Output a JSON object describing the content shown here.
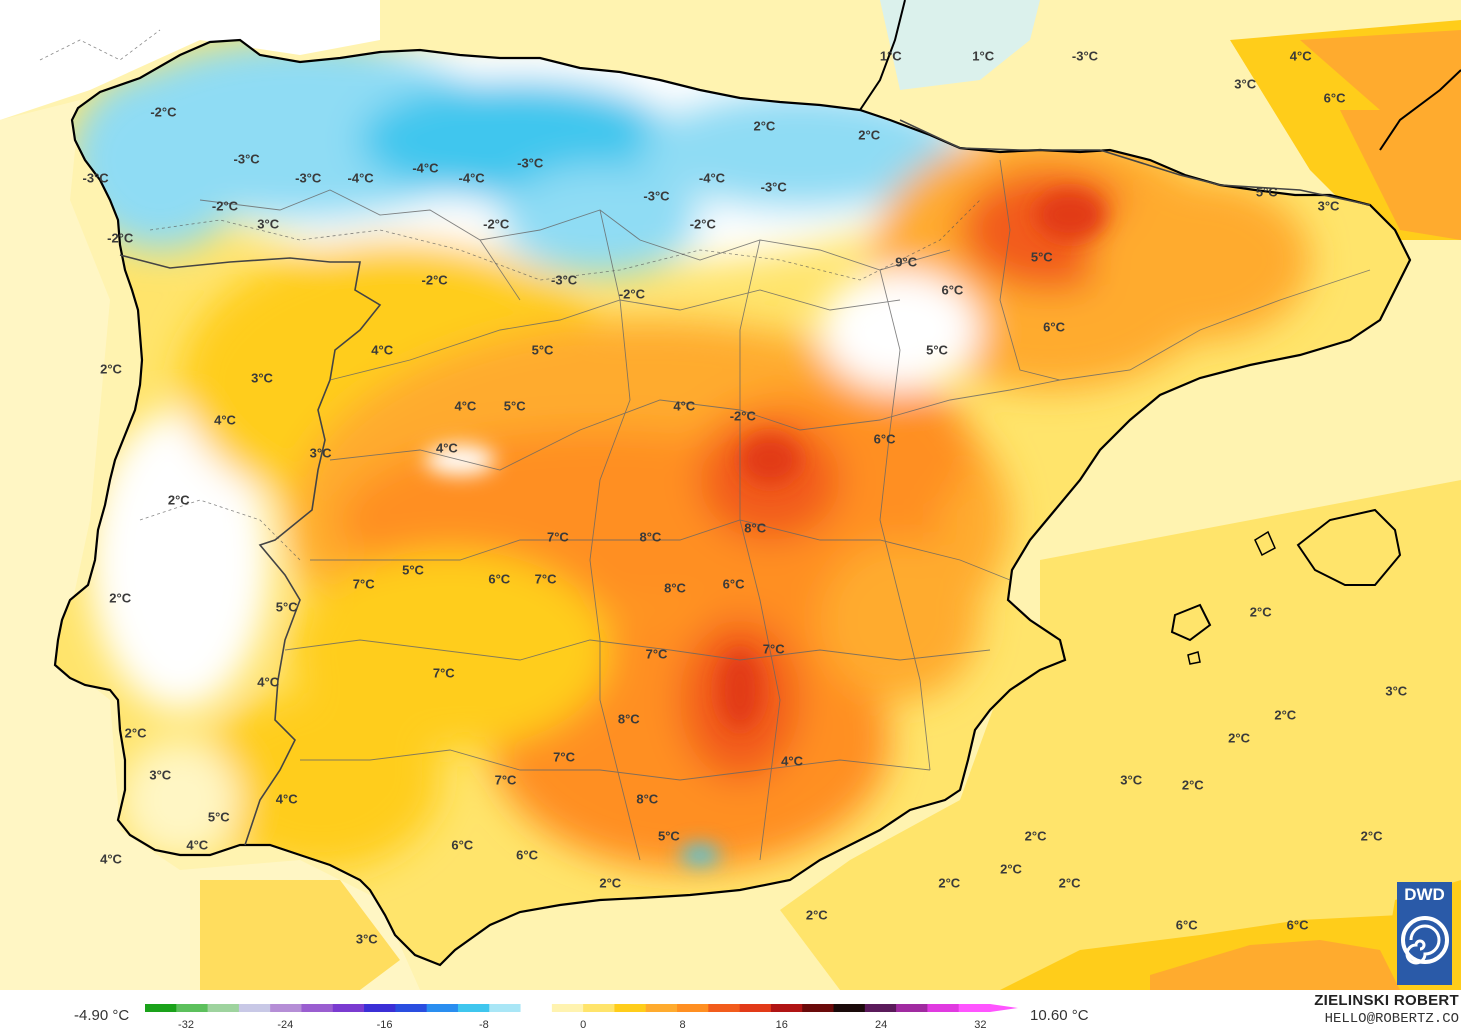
{
  "labels": [
    {
      "text": "1°C",
      "lon": 3.85,
      "lat": 44.05
    },
    {
      "text": "1°C",
      "lon": 5.35,
      "lat": 44.05
    },
    {
      "text": "-3°C",
      "lon": 7.0,
      "lat": 44.05
    },
    {
      "text": "4°C",
      "lon": 10.5,
      "lat": 44.05
    },
    {
      "text": "3°C",
      "lon": 9.6,
      "lat": 43.75
    },
    {
      "text": "6°C",
      "lon": 11.05,
      "lat": 43.6
    },
    {
      "text": "-2°C",
      "lon": -7.95,
      "lat": 43.45
    },
    {
      "text": "2°C",
      "lon": 1.8,
      "lat": 43.3
    },
    {
      "text": "2°C",
      "lon": 3.5,
      "lat": 43.2
    },
    {
      "text": "-3°C",
      "lon": -6.6,
      "lat": 42.95
    },
    {
      "text": "-3°C",
      "lon": -9.05,
      "lat": 42.75
    },
    {
      "text": "-3°C",
      "lon": -5.6,
      "lat": 42.75
    },
    {
      "text": "-4°C",
      "lon": -4.75,
      "lat": 42.75
    },
    {
      "text": "-4°C",
      "lon": -3.7,
      "lat": 42.85
    },
    {
      "text": "-4°C",
      "lon": -2.95,
      "lat": 42.75
    },
    {
      "text": "-3°C",
      "lon": -2.0,
      "lat": 42.9
    },
    {
      "text": "-4°C",
      "lon": 0.95,
      "lat": 42.75
    },
    {
      "text": "-3°C",
      "lon": 1.95,
      "lat": 42.65
    },
    {
      "text": "-3°C",
      "lon": 0.05,
      "lat": 42.55
    },
    {
      "text": "5°C",
      "lon": 9.95,
      "lat": 42.6
    },
    {
      "text": "3°C",
      "lon": 10.95,
      "lat": 42.45
    },
    {
      "text": "-2°C",
      "lon": -6.95,
      "lat": 42.45
    },
    {
      "text": "-2°C",
      "lon": -2.55,
      "lat": 42.25
    },
    {
      "text": "-2°C",
      "lon": 0.8,
      "lat": 42.25
    },
    {
      "text": "-2°C",
      "lon": -8.65,
      "lat": 42.1
    },
    {
      "text": "3°C",
      "lon": -6.25,
      "lat": 42.25
    },
    {
      "text": "9°C",
      "lon": 4.1,
      "lat": 41.85
    },
    {
      "text": "5°C",
      "lon": 6.3,
      "lat": 41.9
    },
    {
      "text": "-2°C",
      "lon": -3.55,
      "lat": 41.65
    },
    {
      "text": "-3°C",
      "lon": -1.45,
      "lat": 41.65
    },
    {
      "text": "6°C",
      "lon": 4.85,
      "lat": 41.55
    },
    {
      "text": "-2°C",
      "lon": -0.35,
      "lat": 41.5
    },
    {
      "text": "6°C",
      "lon": 6.5,
      "lat": 41.15
    },
    {
      "text": "2°C",
      "lon": -8.8,
      "lat": 40.7
    },
    {
      "text": "4°C",
      "lon": -4.4,
      "lat": 40.9
    },
    {
      "text": "5°C",
      "lon": -1.8,
      "lat": 40.9
    },
    {
      "text": "5°C",
      "lon": 4.6,
      "lat": 40.9
    },
    {
      "text": "3°C",
      "lon": -6.35,
      "lat": 40.6
    },
    {
      "text": "4°C",
      "lon": -3.05,
      "lat": 40.3
    },
    {
      "text": "5°C",
      "lon": -2.25,
      "lat": 40.3
    },
    {
      "text": "4°C",
      "lon": 0.5,
      "lat": 40.3
    },
    {
      "text": "-2°C",
      "lon": 1.45,
      "lat": 40.2
    },
    {
      "text": "4°C",
      "lon": -6.95,
      "lat": 40.15
    },
    {
      "text": "6°C",
      "lon": 3.75,
      "lat": 39.95
    },
    {
      "text": "3°C",
      "lon": -5.4,
      "lat": 39.8
    },
    {
      "text": "4°C",
      "lon": -3.35,
      "lat": 39.85
    },
    {
      "text": "2°C",
      "lon": -7.7,
      "lat": 39.3
    },
    {
      "text": "7°C",
      "lon": -1.55,
      "lat": 38.9
    },
    {
      "text": "8°C",
      "lon": -0.05,
      "lat": 38.9
    },
    {
      "text": "8°C",
      "lon": 1.65,
      "lat": 39.0
    },
    {
      "text": "5°C",
      "lon": -3.9,
      "lat": 38.55
    },
    {
      "text": "6°C",
      "lon": -2.5,
      "lat": 38.45
    },
    {
      "text": "7°C",
      "lon": -1.75,
      "lat": 38.45
    },
    {
      "text": "8°C",
      "lon": 0.35,
      "lat": 38.35
    },
    {
      "text": "6°C",
      "lon": 1.3,
      "lat": 38.4
    },
    {
      "text": "7°C",
      "lon": -4.7,
      "lat": 38.4
    },
    {
      "text": "2°C",
      "lon": -8.65,
      "lat": 38.25
    },
    {
      "text": "5°C",
      "lon": -5.95,
      "lat": 38.15
    },
    {
      "text": "2°C",
      "lon": 9.85,
      "lat": 38.1
    },
    {
      "text": "7°C",
      "lon": 0.05,
      "lat": 37.65
    },
    {
      "text": "7°C",
      "lon": 1.95,
      "lat": 37.7
    },
    {
      "text": "4°C",
      "lon": -6.25,
      "lat": 37.35
    },
    {
      "text": "7°C",
      "lon": -3.4,
      "lat": 37.45
    },
    {
      "text": "3°C",
      "lon": 12.05,
      "lat": 37.25
    },
    {
      "text": "2°C",
      "lon": 10.25,
      "lat": 37.0
    },
    {
      "text": "8°C",
      "lon": -0.4,
      "lat": 36.95
    },
    {
      "text": "2°C",
      "lon": -8.4,
      "lat": 36.8
    },
    {
      "text": "2°C",
      "lon": 9.5,
      "lat": 36.75
    },
    {
      "text": "7°C",
      "lon": -1.45,
      "lat": 36.55
    },
    {
      "text": "4°C",
      "lon": 2.25,
      "lat": 36.5
    },
    {
      "text": "3°C",
      "lon": -8.0,
      "lat": 36.35
    },
    {
      "text": "7°C",
      "lon": -2.4,
      "lat": 36.3
    },
    {
      "text": "3°C",
      "lon": 7.75,
      "lat": 36.3
    },
    {
      "text": "2°C",
      "lon": 8.75,
      "lat": 36.25
    },
    {
      "text": "8°C",
      "lon": -0.1,
      "lat": 36.1
    },
    {
      "text": "4°C",
      "lon": -5.95,
      "lat": 36.1
    },
    {
      "text": "5°C",
      "lon": -7.05,
      "lat": 35.9
    },
    {
      "text": "5°C",
      "lon": 0.25,
      "lat": 35.7
    },
    {
      "text": "2°C",
      "lon": 6.2,
      "lat": 35.7
    },
    {
      "text": "2°C",
      "lon": 11.65,
      "lat": 35.7
    },
    {
      "text": "4°C",
      "lon": -7.4,
      "lat": 35.6
    },
    {
      "text": "6°C",
      "lon": -3.1,
      "lat": 35.6
    },
    {
      "text": "6°C",
      "lon": -2.05,
      "lat": 35.5
    },
    {
      "text": "4°C",
      "lon": -8.8,
      "lat": 35.45
    },
    {
      "text": "2°C",
      "lon": 5.8,
      "lat": 35.35
    },
    {
      "text": "2°C",
      "lon": 4.8,
      "lat": 35.2
    },
    {
      "text": "2°C",
      "lon": 6.75,
      "lat": 35.2
    },
    {
      "text": "2°C",
      "lon": -0.7,
      "lat": 35.2
    },
    {
      "text": "2°C",
      "lon": 2.65,
      "lat": 34.85
    },
    {
      "text": "3°C",
      "lon": -4.65,
      "lat": 34.6
    },
    {
      "text": "6°C",
      "lon": 8.65,
      "lat": 34.75
    },
    {
      "text": "6°C",
      "lon": 10.45,
      "lat": 34.75
    }
  ],
  "legend": {
    "min_label": "-4.90 °C",
    "max_label": "10.60 °C",
    "ticks": [
      "-32",
      "-24",
      "-16",
      "-8",
      "0",
      "8",
      "16",
      "24",
      "32"
    ]
  },
  "credits": {
    "author": "ZIELINSKI ROBERT",
    "email": "HELLO@ROBERTZ.CO",
    "logo_text": "DWD"
  },
  "colors": {
    "cold_deep": "#3fc6ee",
    "cold_mid": "#8fdcf4",
    "cold_light": "#d2f0fb",
    "neutral": "#ffffff",
    "warm_pale": "#fff3b0",
    "warm_light": "#ffe46b",
    "warm_yellow": "#ffcd1a",
    "warm_orange_light": "#ffab2e",
    "warm_orange": "#ff8f21",
    "warm_deep": "#f25c1c",
    "hot": "#e23a18",
    "coastline": "#000000",
    "border": "#555555",
    "dwd_blue": "#2a5aa8"
  }
}
